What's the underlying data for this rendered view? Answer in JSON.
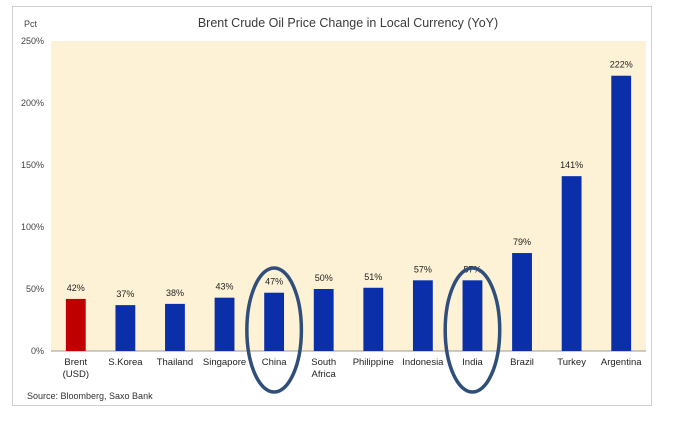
{
  "chart_data": {
    "type": "bar",
    "title": "Brent Crude Oil Price Change in Local Currency (YoY)",
    "ylabel": "Pct",
    "ylim": [
      0,
      250
    ],
    "yticks": [
      "0%",
      "50%",
      "100%",
      "150%",
      "200%",
      "250%"
    ],
    "categories": [
      [
        "Brent",
        "(USD)"
      ],
      [
        "S.Korea"
      ],
      [
        "Thailand"
      ],
      [
        "Singapore"
      ],
      [
        "China"
      ],
      [
        "South",
        "Africa"
      ],
      [
        "Philippine"
      ],
      [
        "Indonesia"
      ],
      [
        "India"
      ],
      [
        "Brazil"
      ],
      [
        "Turkey"
      ],
      [
        "Argentina"
      ]
    ],
    "values": [
      42,
      37,
      38,
      43,
      47,
      50,
      51,
      57,
      57,
      79,
      141,
      222
    ],
    "data_labels": [
      "42%",
      "37%",
      "38%",
      "43%",
      "47%",
      "50%",
      "51%",
      "57%",
      "57%",
      "79%",
      "141%",
      "222%"
    ],
    "bar_colors": [
      "#c00000",
      "#0a2fa8",
      "#0a2fa8",
      "#0a2fa8",
      "#0a2fa8",
      "#0a2fa8",
      "#0a2fa8",
      "#0a2fa8",
      "#0a2fa8",
      "#0a2fa8",
      "#0a2fa8",
      "#0a2fa8"
    ],
    "highlighted": [
      "China",
      "India"
    ],
    "plot_background": "#fdf2d6",
    "highlight_color": "#2f4f7a",
    "grid": false,
    "legend": "none"
  },
  "source": "Source: Bloomberg, Saxo Bank"
}
